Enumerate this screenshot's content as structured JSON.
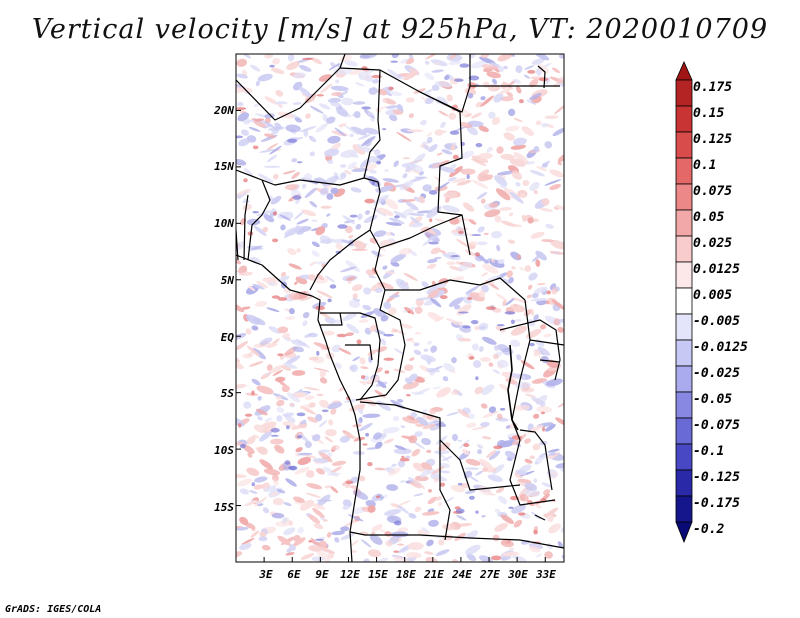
{
  "title": "Vertical velocity [m/s] at 925hPa, VT: 2020010709",
  "footer": "GrADS: IGES/COLA",
  "map": {
    "region": "Central Africa",
    "lon_range": [
      0,
      35
    ],
    "lat_range": [
      -20,
      25
    ],
    "lat_labels": [
      "20N",
      "15N",
      "10N",
      "5N",
      "EQ",
      "5S",
      "10S",
      "15S"
    ],
    "lat_values": [
      20,
      15,
      10,
      5,
      0,
      -5,
      -10,
      -15
    ],
    "lon_labels": [
      "3E",
      "6E",
      "9E",
      "12E",
      "15E",
      "18E",
      "21E",
      "24E",
      "27E",
      "30E",
      "33E"
    ],
    "lon_values": [
      3,
      6,
      9,
      12,
      15,
      18,
      21,
      24,
      27,
      30,
      33
    ]
  },
  "colorbar": {
    "labels": [
      "0.175",
      "0.15",
      "0.125",
      "0.1",
      "0.075",
      "0.05",
      "0.025",
      "0.0125",
      "0.005",
      "-0.005",
      "-0.0125",
      "-0.025",
      "-0.05",
      "-0.075",
      "-0.1",
      "-0.125",
      "-0.175",
      "-0.2"
    ],
    "colors": [
      "#a01616",
      "#b42424",
      "#c83434",
      "#d84c4c",
      "#e46868",
      "#ec8888",
      "#f2a8a8",
      "#f8cccc",
      "#fce8e8",
      "#ffffff",
      "#e4e4fa",
      "#c8c8f4",
      "#aaaaee",
      "#8888e2",
      "#6a6ad6",
      "#4848c4",
      "#2a2aa8",
      "#16168c",
      "#0a0a74"
    ]
  }
}
